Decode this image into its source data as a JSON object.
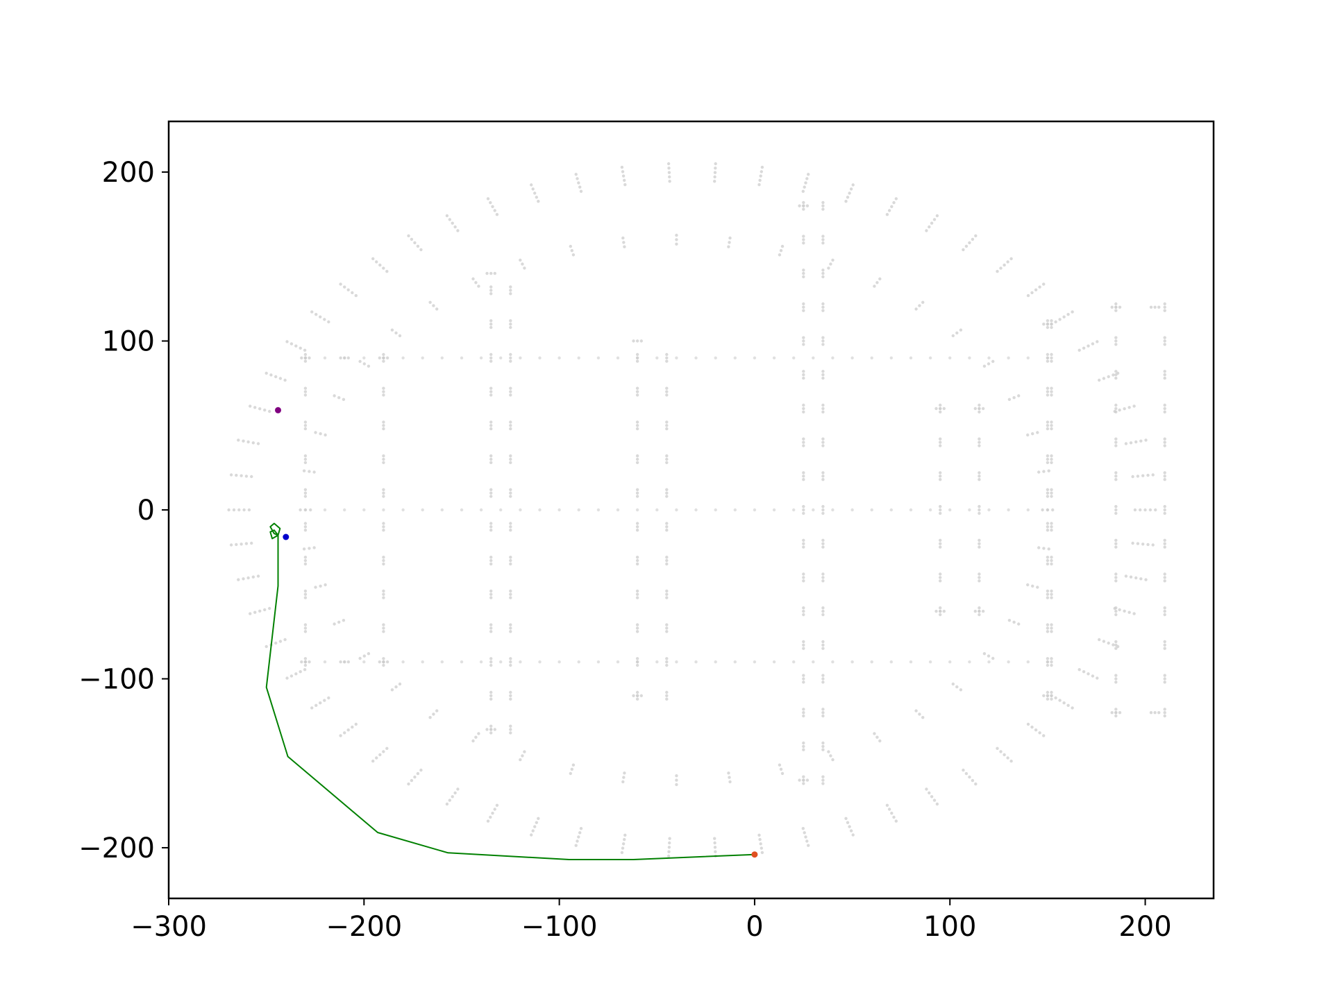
{
  "chart_data": {
    "type": "scatter",
    "title": "",
    "xlabel": "",
    "ylabel": "",
    "xlim": [
      -300,
      235
    ],
    "ylim": [
      -230,
      230
    ],
    "x_ticks": [
      -300,
      -200,
      -100,
      0,
      100,
      200
    ],
    "x_tick_labels": [
      "−300",
      "−200",
      "−100",
      "0",
      "100",
      "200"
    ],
    "y_ticks": [
      -200,
      -100,
      0,
      100,
      200
    ],
    "y_tick_labels": [
      "−200",
      "−100",
      "0",
      "100",
      "200"
    ],
    "grid": false,
    "legend": "none",
    "colors": {
      "background_points": "#cccccc",
      "trajectory": "#008000",
      "start_marker": "#e05020",
      "goal_marker": "#800080",
      "end_marker": "#0000cc",
      "axes": "#000000"
    },
    "series": [
      {
        "role": "trajectory",
        "x": [
          0,
          -62,
          -95,
          -157,
          -193,
          -239,
          -250,
          -244,
          -244,
          -246,
          -248,
          -247,
          -244,
          -243,
          -246,
          -248,
          -246,
          -244
        ],
        "y": [
          -204,
          -207,
          -207,
          -203,
          -191,
          -146,
          -105,
          -45,
          -15,
          -12,
          -13,
          -17,
          -15,
          -11,
          -8,
          -10,
          -14,
          -15
        ]
      },
      {
        "role": "start_marker",
        "x": [
          0
        ],
        "y": [
          -204
        ]
      },
      {
        "role": "goal_marker",
        "x": [
          -244
        ],
        "y": [
          59
        ]
      },
      {
        "role": "end_marker",
        "x": [
          -240
        ],
        "y": [
          -16
        ]
      }
    ]
  }
}
